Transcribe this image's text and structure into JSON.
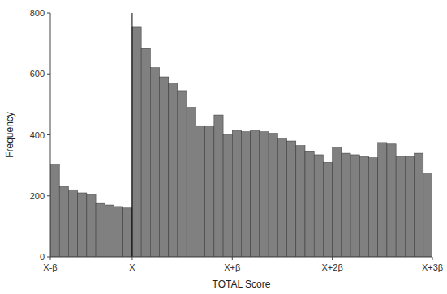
{
  "chart_data": {
    "type": "histogram",
    "xlabel": "TOTAL Score",
    "ylabel": "Frequency",
    "bins": [
      0,
      1,
      2,
      3,
      4,
      5,
      6,
      7,
      8,
      9,
      10,
      11,
      12,
      13,
      14,
      15,
      16,
      17,
      18,
      19,
      20,
      21,
      22,
      23,
      24,
      25,
      26,
      27,
      28,
      29,
      30,
      31,
      32,
      33,
      34,
      35,
      36,
      37,
      38,
      39,
      40,
      41,
      42
    ],
    "values": [
      305,
      230,
      220,
      210,
      205,
      175,
      170,
      165,
      160,
      755,
      685,
      620,
      590,
      570,
      545,
      490,
      430,
      430,
      465,
      400,
      415,
      410,
      415,
      410,
      405,
      390,
      380,
      365,
      345,
      335,
      310,
      360,
      340,
      335,
      330,
      325,
      375,
      370,
      330,
      330,
      340,
      275
    ],
    "color": "#808080",
    "vline": 9,
    "xlim": [
      0,
      42
    ],
    "xticks": [
      {
        "value": 0,
        "label": "X-β"
      },
      {
        "value": 9,
        "label": "X"
      },
      {
        "value": 20,
        "label": "X+β"
      },
      {
        "value": 31,
        "label": "X+2β"
      },
      {
        "value": 42,
        "label": "X+3β"
      }
    ],
    "ylim": [
      0,
      800
    ],
    "yticks": [
      0,
      200,
      400,
      600,
      800
    ],
    "grid": false
  }
}
